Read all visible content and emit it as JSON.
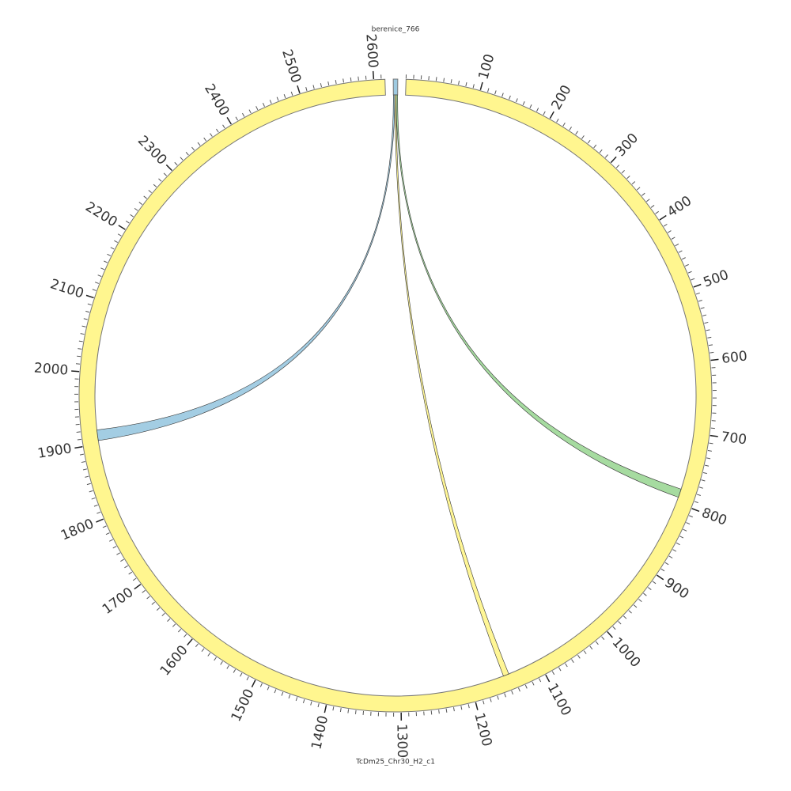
{
  "chart_data": {
    "type": "chord",
    "segments": [
      {
        "name": "TcDm25_Chr30_H2_c1",
        "length": 2615,
        "color": "#fff68f"
      },
      {
        "name": "berenice_766",
        "length": 6,
        "color": "#9ecae1"
      }
    ],
    "ticks": [
      100,
      200,
      300,
      400,
      500,
      600,
      700,
      800,
      900,
      1000,
      1100,
      1200,
      1300,
      1400,
      1500,
      1600,
      1700,
      1800,
      1900,
      2000,
      2100,
      2200,
      2300,
      2400,
      2500,
      2600
    ],
    "minor_tick_step": 10,
    "links": [
      {
        "source_start": 0,
        "source_end": 2,
        "target_start": 1905,
        "target_end": 1920,
        "color": "#9ecae1"
      },
      {
        "source_start": 2,
        "source_end": 4,
        "target_start": 1145,
        "target_end": 1153,
        "color": "#fff68f"
      },
      {
        "source_start": 4,
        "source_end": 6,
        "target_start": 780,
        "target_end": 792,
        "color": "#a1d99b"
      }
    ]
  }
}
